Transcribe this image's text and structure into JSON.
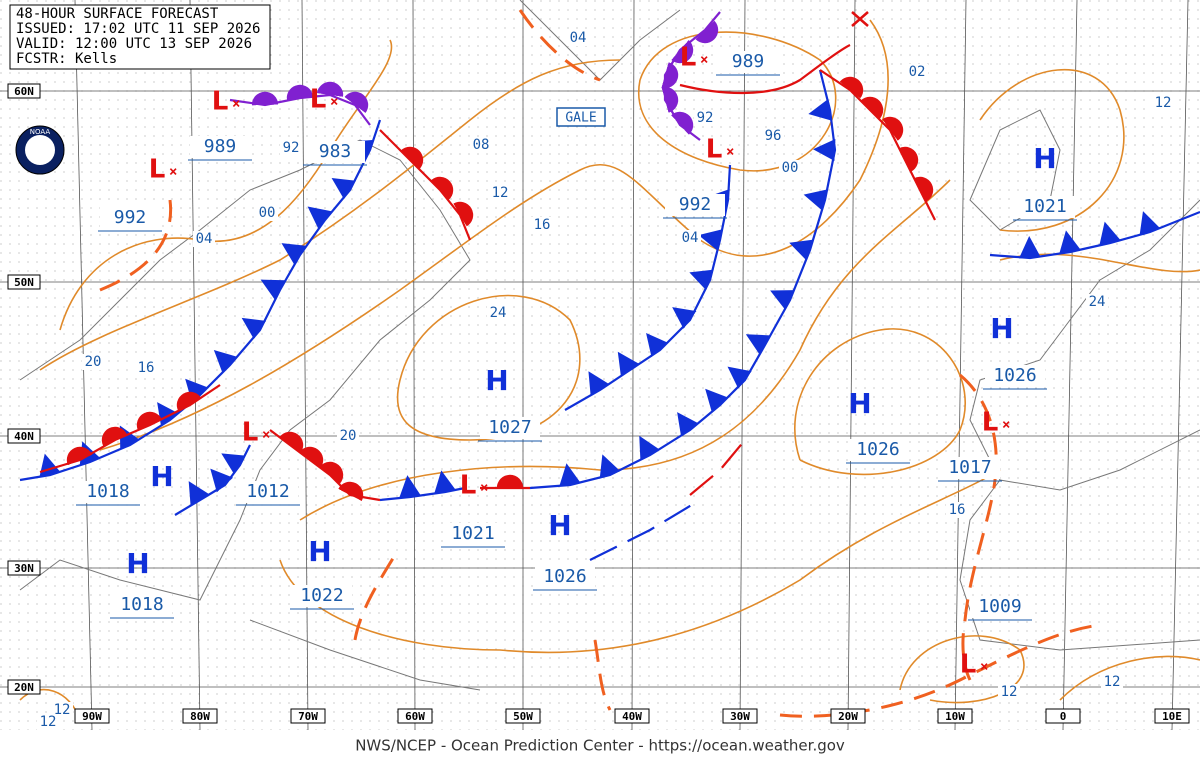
{
  "header": {
    "lines": [
      "48-HOUR SURFACE FORECAST",
      "ISSUED: 17:02 UTC 11 SEP 2026",
      "VALID: 12:00 UTC 13 SEP 2026",
      "FCSTR:  Kells"
    ]
  },
  "logo": "NOAA",
  "lat_labels": [
    "60N",
    "50N",
    "40N",
    "30N",
    "20N"
  ],
  "lon_labels": [
    "90W",
    "80W",
    "70W",
    "60W",
    "50W",
    "40W",
    "30W",
    "20W",
    "10W",
    "0",
    "10E"
  ],
  "centers": [
    {
      "kind": "L",
      "pressure": "989"
    },
    {
      "kind": "L",
      "pressure": "983"
    },
    {
      "kind": "L",
      "pressure": "992"
    },
    {
      "kind": "L",
      "pressure": "989"
    },
    {
      "kind": "L",
      "pressure": "992"
    },
    {
      "kind": "H",
      "pressure": "1021"
    },
    {
      "kind": "H",
      "pressure": "1026"
    },
    {
      "kind": "H",
      "pressure": "1026"
    },
    {
      "kind": "H",
      "pressure": "1027"
    },
    {
      "kind": "H",
      "pressure": "1018"
    },
    {
      "kind": "L",
      "pressure": "1012"
    },
    {
      "kind": "L",
      "pressure": "1021"
    },
    {
      "kind": "H",
      "pressure": "1026"
    },
    {
      "kind": "H",
      "pressure": "1022"
    },
    {
      "kind": "H",
      "pressure": "1018"
    },
    {
      "kind": "L",
      "pressure": "1017"
    },
    {
      "kind": "L",
      "pressure": "1009"
    }
  ],
  "isobar_labels": [
    "04",
    "92",
    "00",
    "04",
    "08",
    "12",
    "16",
    "24",
    "20",
    "16",
    "20",
    "92",
    "96",
    "00",
    "04",
    "02",
    "12",
    "24",
    "16",
    "12",
    "12",
    "12",
    "12"
  ],
  "warning": "GALE",
  "footer": "NWS/NCEP - Ocean Prediction Center - https://ocean.weather.gov"
}
